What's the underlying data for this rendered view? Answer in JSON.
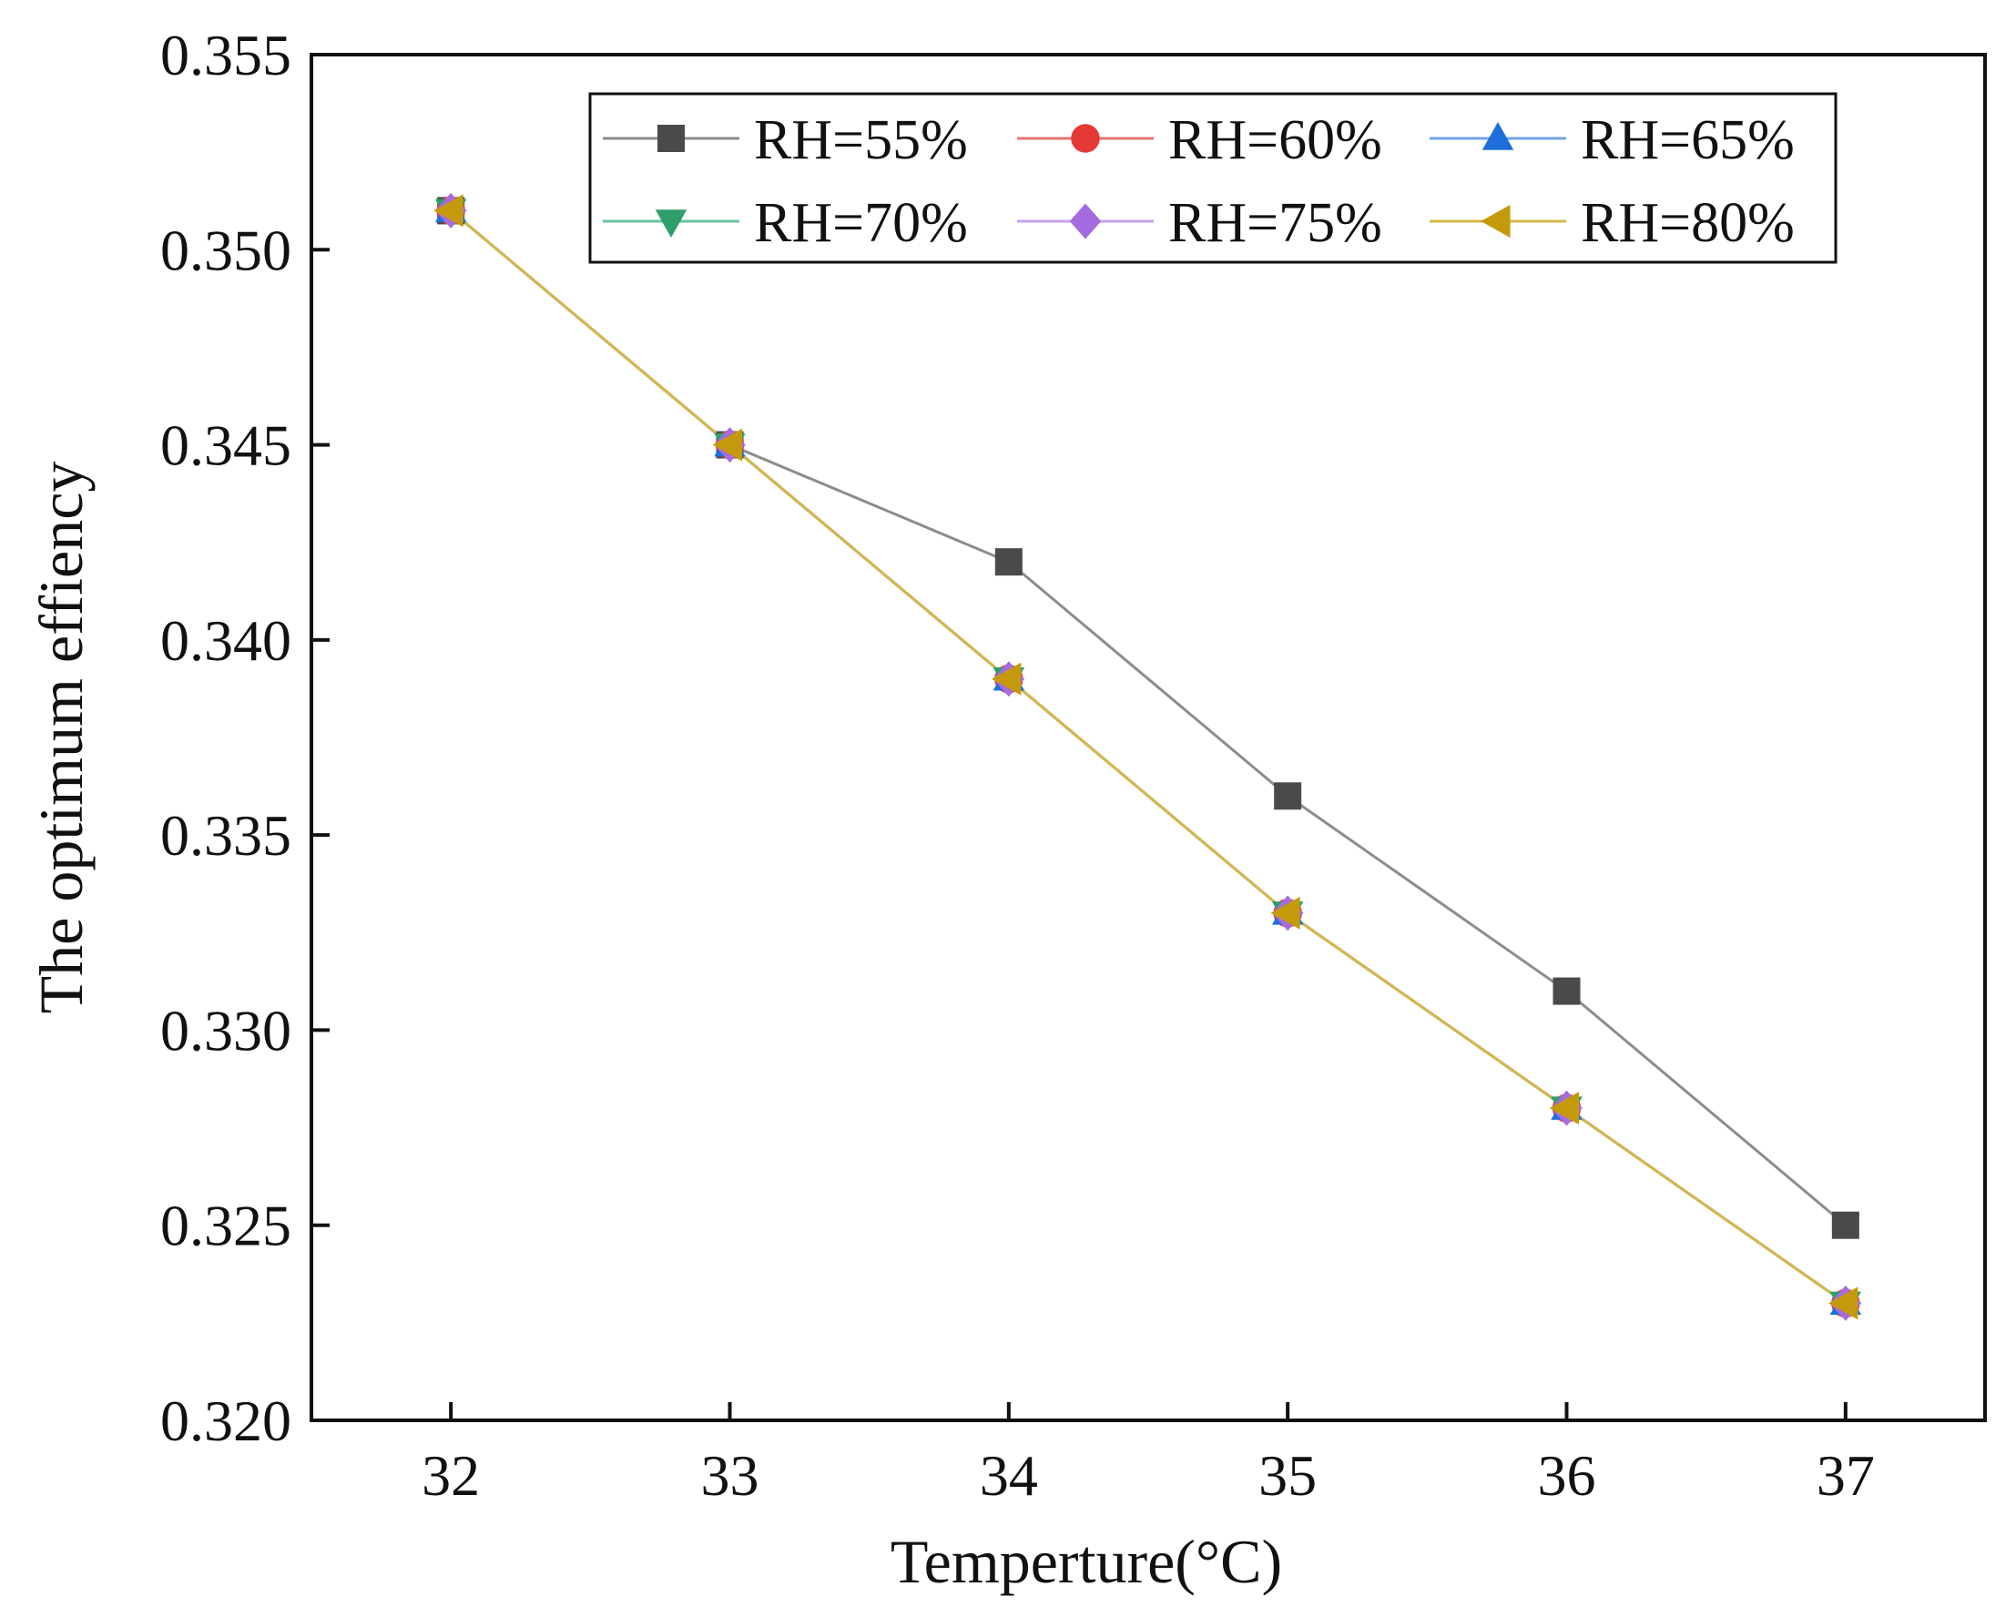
{
  "chart_data": {
    "type": "line",
    "title": "",
    "xlabel": "Temperture(°C)",
    "ylabel": "The optimum effiency",
    "x": [
      32,
      33,
      34,
      35,
      36,
      37
    ],
    "xticks": [
      "32",
      "33",
      "34",
      "35",
      "36",
      "37"
    ],
    "xlim": [
      31.5,
      37.5
    ],
    "ylim": [
      0.32,
      0.355
    ],
    "yticks": [
      "0.320",
      "0.325",
      "0.330",
      "0.335",
      "0.340",
      "0.345",
      "0.350",
      "0.355"
    ],
    "grid": false,
    "legend_position": "top-right",
    "series": [
      {
        "name": "RH=55%",
        "marker": "square",
        "color": "#4a4a4a",
        "line_color": "#8c8c8c",
        "values": [
          0.351,
          0.345,
          0.342,
          0.336,
          0.331,
          0.325
        ]
      },
      {
        "name": "RH=60%",
        "marker": "circle",
        "color": "#e53935",
        "line_color": "#e57373",
        "values": [
          0.351,
          0.345,
          0.339,
          0.333,
          0.328,
          0.323
        ]
      },
      {
        "name": "RH=65%",
        "marker": "triangle-up",
        "color": "#1e6fd9",
        "line_color": "#6fa3e6",
        "values": [
          0.351,
          0.345,
          0.339,
          0.333,
          0.328,
          0.323
        ]
      },
      {
        "name": "RH=70%",
        "marker": "triangle-down",
        "color": "#2e9e6b",
        "line_color": "#6cc29a",
        "values": [
          0.351,
          0.345,
          0.339,
          0.333,
          0.328,
          0.323
        ]
      },
      {
        "name": "RH=75%",
        "marker": "diamond",
        "color": "#a56cdf",
        "line_color": "#c6a2ec",
        "values": [
          0.351,
          0.345,
          0.339,
          0.333,
          0.328,
          0.323
        ]
      },
      {
        "name": "RH=80%",
        "marker": "triangle-left",
        "color": "#c49a0a",
        "line_color": "#d4b84a",
        "values": [
          0.351,
          0.345,
          0.339,
          0.333,
          0.328,
          0.323
        ]
      }
    ]
  }
}
